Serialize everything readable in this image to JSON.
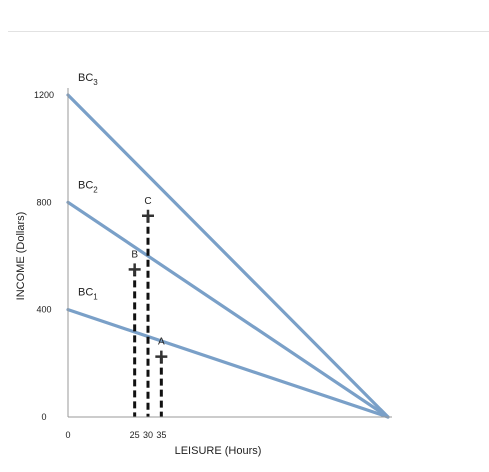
{
  "chart_data": {
    "type": "line",
    "xlabel": "LEISURE (Hours)",
    "ylabel": "INCOME (Dollars)",
    "xlim": [
      0,
      120
    ],
    "ylim": [
      0,
      1200
    ],
    "x_ticks": [
      {
        "value": 0,
        "label": "0"
      },
      {
        "value": 25,
        "label": "25"
      },
      {
        "value": 30,
        "label": "30"
      },
      {
        "value": 35,
        "label": "35"
      }
    ],
    "y_ticks": [
      {
        "value": 0,
        "label": "0"
      },
      {
        "value": 400,
        "label": "400"
      },
      {
        "value": 800,
        "label": "800"
      },
      {
        "value": 1200,
        "label": "1200"
      }
    ],
    "series": [
      {
        "name": "BC1",
        "label_main": "BC",
        "label_sub": "1",
        "x": [
          0,
          120
        ],
        "y": [
          400,
          0
        ]
      },
      {
        "name": "BC2",
        "label_main": "BC",
        "label_sub": "2",
        "x": [
          0,
          120
        ],
        "y": [
          800,
          0
        ]
      },
      {
        "name": "BC3",
        "label_main": "BC",
        "label_sub": "3",
        "x": [
          0,
          120
        ],
        "y": [
          1200,
          0
        ]
      }
    ],
    "points": [
      {
        "label": "A",
        "x": 35,
        "y": 225
      },
      {
        "label": "B",
        "x": 25,
        "y": 550
      },
      {
        "label": "C",
        "x": 30,
        "y": 750
      }
    ],
    "colors": {
      "line": "#7aa0c8",
      "axis": "#999999",
      "marker": "#333333",
      "dash": "#111111"
    }
  }
}
